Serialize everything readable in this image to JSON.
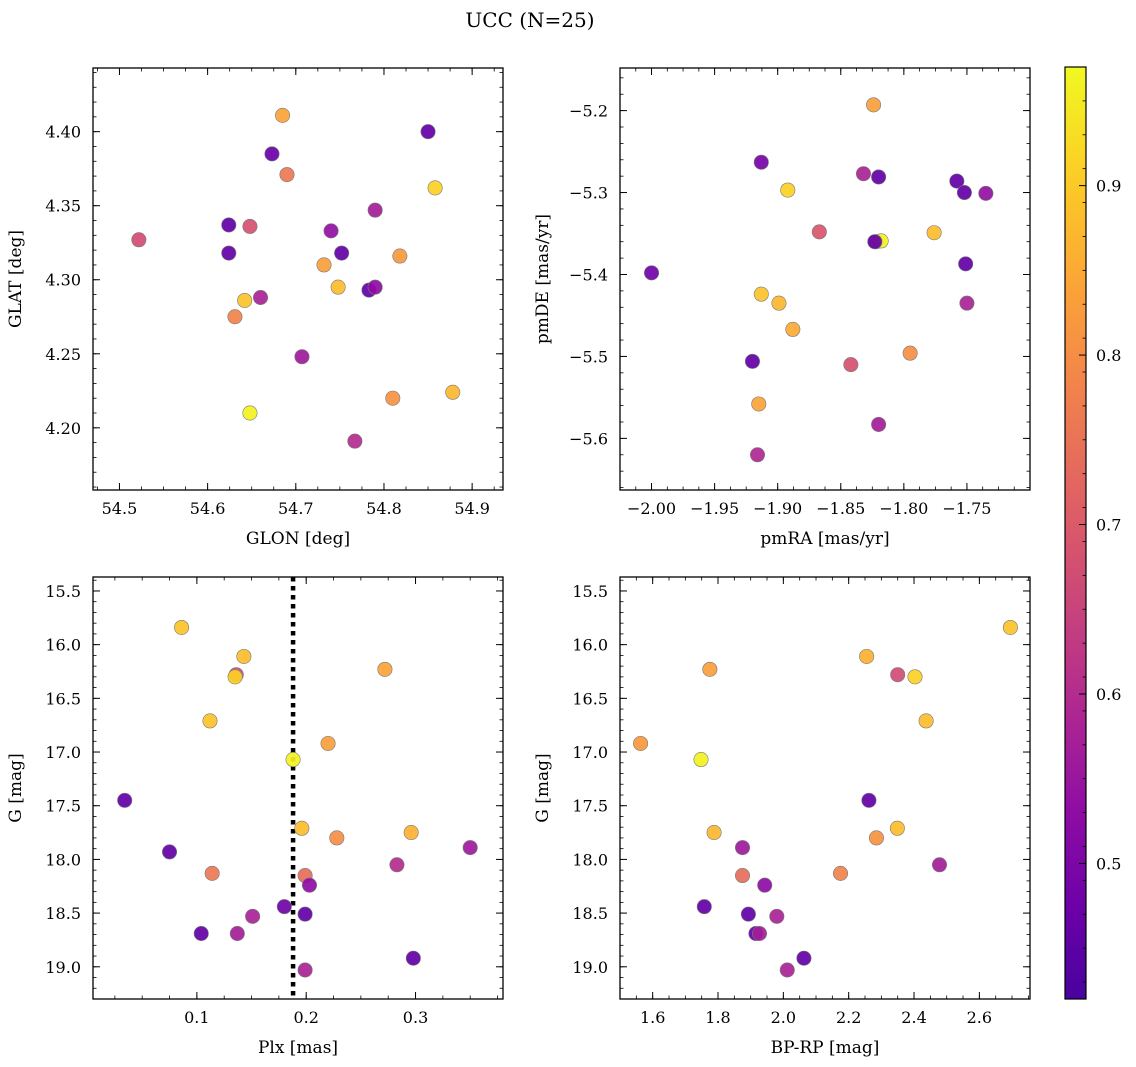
{
  "title": "UCC (N=25)",
  "colorbar": {
    "ticks": [
      0.5,
      0.6,
      0.7,
      0.8,
      0.9
    ],
    "range": [
      0.42,
      0.97
    ],
    "colormap": "plasma"
  },
  "chart_data": [
    {
      "type": "scatter",
      "xlabel": "GLON [deg]",
      "ylabel": "GLAT [deg]",
      "xlim": [
        54.47,
        54.935
      ],
      "ylim": [
        4.158,
        4.443
      ],
      "xticks": [
        54.5,
        54.6,
        54.7,
        54.8,
        54.9
      ],
      "yticks": [
        4.2,
        4.25,
        4.3,
        4.35,
        4.4
      ],
      "x": [
        54.685,
        54.85,
        54.673,
        54.69,
        54.858,
        54.522,
        54.624,
        54.648,
        54.79,
        54.74,
        54.624,
        54.752,
        54.818,
        54.732,
        54.748,
        54.783,
        54.79,
        54.642,
        54.66,
        54.631,
        54.707,
        54.648,
        54.878,
        54.81,
        54.767
      ],
      "y": [
        4.411,
        4.4,
        4.385,
        4.371,
        4.362,
        4.327,
        4.337,
        4.336,
        4.347,
        4.333,
        4.318,
        4.318,
        4.316,
        4.31,
        4.295,
        4.293,
        4.295,
        4.286,
        4.288,
        4.275,
        4.248,
        4.21,
        4.224,
        4.22,
        4.191
      ],
      "values": [
        0.84,
        0.46,
        0.47,
        0.76,
        0.91,
        0.67,
        0.46,
        0.68,
        0.57,
        0.54,
        0.46,
        0.46,
        0.82,
        0.83,
        0.88,
        0.46,
        0.53,
        0.89,
        0.58,
        0.78,
        0.56,
        0.96,
        0.87,
        0.81,
        0.6
      ]
    },
    {
      "type": "scatter",
      "xlabel": "pmRA [mas/yr]",
      "ylabel": "pmDE [mas/yr]",
      "xlim": [
        -2.025,
        -1.7
      ],
      "ylim": [
        -5.663,
        -5.148
      ],
      "xticks": [
        -2.0,
        -1.95,
        -1.9,
        -1.85,
        -1.8,
        -1.75
      ],
      "yticks": [
        -5.6,
        -5.5,
        -5.4,
        -5.3,
        -5.2
      ],
      "tick_labels_x": [
        "−2.00",
        "−1.95",
        "−1.90",
        "−1.85",
        "−1.80",
        "−1.75"
      ],
      "tick_labels_y": [
        "−5.6",
        "−5.5",
        "−5.4",
        "−5.3",
        "−5.2"
      ],
      "x": [
        -1.824,
        -1.913,
        -1.832,
        -1.82,
        -1.758,
        -1.735,
        -1.892,
        -1.752,
        -1.867,
        -1.776,
        -1.822,
        -1.818,
        -2.0,
        -1.751,
        -1.913,
        -1.899,
        -1.75,
        -1.888,
        -1.795,
        -1.92,
        -1.842,
        -1.915,
        -1.82,
        -1.916,
        -1.823
      ],
      "y": [
        -5.193,
        -5.263,
        -5.277,
        -5.281,
        -5.286,
        -5.301,
        -5.297,
        -5.3,
        -5.348,
        -5.349,
        -5.36,
        -5.359,
        -5.398,
        -5.387,
        -5.424,
        -5.435,
        -5.435,
        -5.467,
        -5.496,
        -5.506,
        -5.51,
        -5.558,
        -5.583,
        -5.62,
        -5.36
      ],
      "values": [
        0.83,
        0.49,
        0.58,
        0.46,
        0.46,
        0.54,
        0.91,
        0.46,
        0.69,
        0.88,
        0.88,
        0.96,
        0.48,
        0.46,
        0.89,
        0.87,
        0.58,
        0.85,
        0.8,
        0.46,
        0.68,
        0.84,
        0.57,
        0.59,
        0.46
      ]
    },
    {
      "type": "scatter",
      "xlabel": "Plx [mas]",
      "ylabel": "G [mag]",
      "xlim": [
        0.005,
        0.38
      ],
      "ylim": [
        19.3,
        15.37
      ],
      "invert_y": true,
      "xticks": [
        0.1,
        0.2,
        0.3
      ],
      "yticks": [
        15.5,
        16.0,
        16.5,
        17.0,
        17.5,
        18.0,
        18.5,
        19.0
      ],
      "vline": 0.188,
      "x": [
        0.086,
        0.143,
        0.136,
        0.135,
        0.272,
        0.112,
        0.22,
        0.188,
        0.034,
        0.196,
        0.075,
        0.228,
        0.296,
        0.35,
        0.114,
        0.199,
        0.203,
        0.283,
        0.18,
        0.199,
        0.151,
        0.104,
        0.137,
        0.298,
        0.199
      ],
      "y": [
        15.84,
        16.11,
        16.28,
        16.3,
        16.23,
        16.71,
        16.92,
        17.07,
        17.45,
        17.71,
        17.93,
        17.8,
        17.75,
        17.89,
        18.13,
        18.15,
        18.24,
        18.05,
        18.44,
        18.51,
        18.53,
        18.69,
        18.69,
        18.92,
        19.03
      ],
      "values": [
        0.89,
        0.88,
        0.68,
        0.91,
        0.84,
        0.89,
        0.83,
        0.96,
        0.46,
        0.88,
        0.46,
        0.8,
        0.86,
        0.56,
        0.76,
        0.74,
        0.53,
        0.6,
        0.48,
        0.46,
        0.58,
        0.46,
        0.57,
        0.46,
        0.58
      ]
    },
    {
      "type": "scatter",
      "xlabel": "BP-RP [mag]",
      "ylabel": "G [mag]",
      "xlim": [
        1.5,
        2.755
      ],
      "ylim": [
        19.3,
        15.37
      ],
      "invert_y": true,
      "xticks": [
        1.6,
        1.8,
        2.0,
        2.2,
        2.4,
        2.6
      ],
      "yticks": [
        15.5,
        16.0,
        16.5,
        17.0,
        17.5,
        18.0,
        18.5,
        19.0
      ],
      "x": [
        2.695,
        2.255,
        1.775,
        2.35,
        2.403,
        2.437,
        1.563,
        1.748,
        2.262,
        2.349,
        1.788,
        2.285,
        1.875,
        1.875,
        2.175,
        2.478,
        1.943,
        1.758,
        1.893,
        1.98,
        1.916,
        1.927,
        2.012,
        2.063
      ],
      "y": [
        15.84,
        16.11,
        16.23,
        16.28,
        16.3,
        16.71,
        16.92,
        17.07,
        17.45,
        17.71,
        17.75,
        17.8,
        17.89,
        18.15,
        18.13,
        18.05,
        18.24,
        18.44,
        18.51,
        18.53,
        18.69,
        18.69,
        19.03,
        18.92
      ],
      "values": [
        0.89,
        0.86,
        0.83,
        0.67,
        0.91,
        0.88,
        0.82,
        0.96,
        0.46,
        0.88,
        0.87,
        0.81,
        0.56,
        0.74,
        0.78,
        0.57,
        0.53,
        0.46,
        0.46,
        0.58,
        0.46,
        0.57,
        0.58,
        0.46
      ]
    }
  ]
}
